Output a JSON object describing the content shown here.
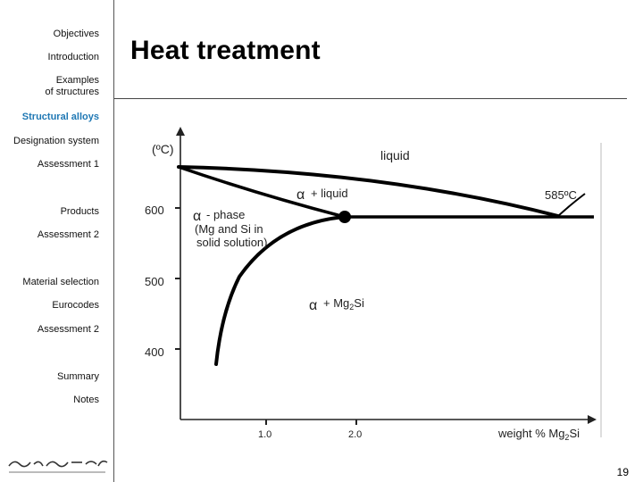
{
  "sidebar": {
    "items": [
      {
        "label": "Objectives"
      },
      {
        "label": "Introduction"
      },
      {
        "label": "Examples",
        "label2": "of structures"
      },
      {
        "label": "Structural alloys",
        "active": true
      },
      {
        "label": "Designation system"
      },
      {
        "label": "Assessment 1"
      },
      {
        "label": "Products"
      },
      {
        "label": "Assessment 2"
      },
      {
        "label": "Material selection"
      },
      {
        "label": "Eurocodes"
      },
      {
        "label": "Assessment 2"
      },
      {
        "label": "Summary"
      },
      {
        "label": "Notes"
      }
    ],
    "active_color": "#1f78b4"
  },
  "slide": {
    "title": "Heat treatment",
    "number": "19"
  },
  "chart_data": {
    "type": "line",
    "xlabel": "weight % Mg",
    "xlabel_sub": "2",
    "xlabel_tail": "Si",
    "ylabel": "(ºC)",
    "x_ticks": [
      "1.0",
      "2.0"
    ],
    "y_ticks": [
      "600",
      "500",
      "400"
    ],
    "annotations": {
      "liquid": "liquid",
      "alpha": "α",
      "alpha_liquid": "+ liquid",
      "eutectic_temp": "585ºC",
      "alpha_phase": "- phase",
      "alpha_phase_line2": "(Mg and Si in",
      "alpha_phase_line3": "solid solution)",
      "alpha_mg2si": "+ Mg",
      "alpha_mg2si_sub": "2",
      "alpha_mg2si_tail": "Si"
    }
  }
}
